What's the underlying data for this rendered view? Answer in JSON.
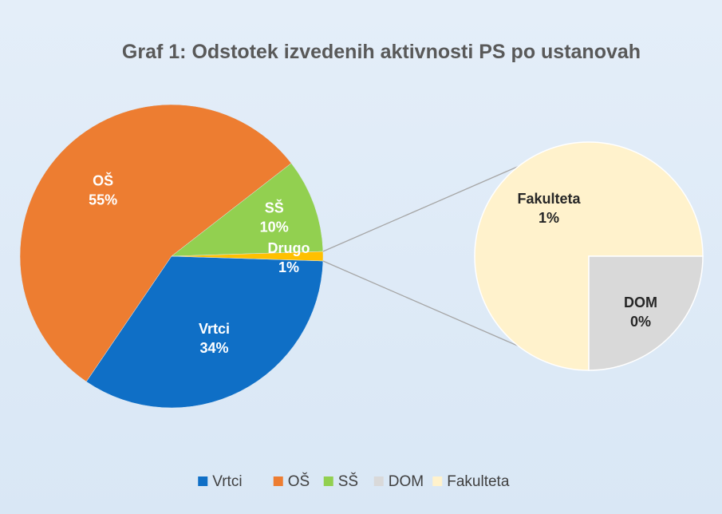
{
  "chart_data": {
    "type": "pie",
    "subtype": "pie-of-pie",
    "title": "Graf 1: Odstotek izvedenih aktivnosti PS po ustanovah",
    "main_pie": {
      "slices": [
        {
          "label": "Vrtci",
          "value": 34,
          "display": "34%",
          "color": "#0f6fc6"
        },
        {
          "label": "OŠ",
          "value": 55,
          "display": "55%",
          "color": "#ed7d31"
        },
        {
          "label": "SŠ",
          "value": 10,
          "display": "10%",
          "color": "#92d050"
        },
        {
          "label": "Drugo",
          "value": 1,
          "display": "1%",
          "color": "#ffc000"
        }
      ]
    },
    "secondary_pie": {
      "source": "Drugo",
      "slices": [
        {
          "label": "Fakulteta",
          "value": 0.75,
          "display": "1%",
          "color": "#fff2cc"
        },
        {
          "label": "DOM",
          "value": 0.25,
          "display": "0%",
          "color": "#d9d9d9"
        }
      ]
    },
    "legend": {
      "position": "bottom",
      "entries": [
        {
          "name": "Vrtci",
          "color": "#0f6fc6"
        },
        {
          "name": "OŠ",
          "color": "#ed7d31"
        },
        {
          "name": "SŠ",
          "color": "#92d050"
        },
        {
          "name": "DOM",
          "color": "#d9d9d9"
        },
        {
          "name": "Fakulteta",
          "color": "#fff2cc"
        }
      ]
    }
  }
}
